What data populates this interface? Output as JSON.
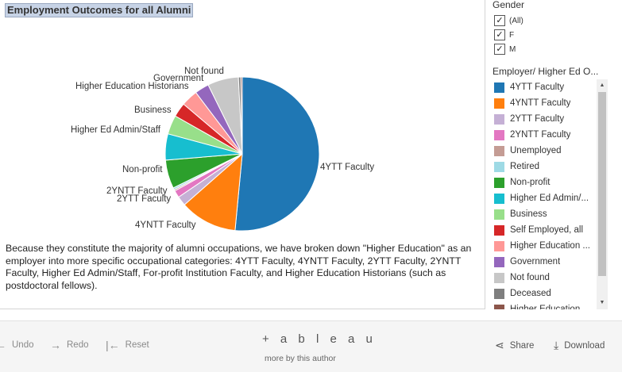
{
  "title": "Employment Outcomes for all Alumni",
  "chart_data": {
    "type": "pie",
    "slices": [
      {
        "label": "4YTT Faculty",
        "value": 51.5,
        "color": "#1f77b4"
      },
      {
        "label": "4YNTT Faculty",
        "value": 12.0,
        "color": "#ff7f0e"
      },
      {
        "label": "2YTT Faculty",
        "value": 2.0,
        "color": "#c5b0d5"
      },
      {
        "label": "2YNTT Faculty",
        "value": 1.5,
        "color": "#e377c2"
      },
      {
        "label": "Unemployed",
        "value": 0.3,
        "color": "#c49c94"
      },
      {
        "label": "Retired",
        "value": 0.4,
        "color": "#9edae5"
      },
      {
        "label": "Non-profit",
        "value": 6.0,
        "color": "#2ca02c"
      },
      {
        "label": "Higher Ed Admin/Staff",
        "value": 5.5,
        "color": "#17becf"
      },
      {
        "label": "Business",
        "value": 4.0,
        "color": "#98df8a"
      },
      {
        "label": "Self Employed, all",
        "value": 3.0,
        "color": "#d62728"
      },
      {
        "label": "Higher Education Historians",
        "value": 3.5,
        "color": "#ff9896"
      },
      {
        "label": "Government",
        "value": 3.0,
        "color": "#9467bd"
      },
      {
        "label": "Not found",
        "value": 6.5,
        "color": "#c7c7c7"
      },
      {
        "label": "Deceased",
        "value": 0.5,
        "color": "#7f7f7f"
      },
      {
        "label": "Higher Education",
        "value": 0.3,
        "color": "#8c564b"
      }
    ]
  },
  "note": "Because they constitute the majority of alumni occupations,  we have broken down \"Higher Education\" as an employer into more specific occupational categories: 4YTT Faculty, 4YNTT Faculty, 2YTT Faculty, 2YNTT Faculty, Higher Ed Admin/Staff,  For-profit Institution Faculty, and Higher Education Historians (such as postdoctoral fellows).",
  "filters": {
    "gender_heading": "Gender",
    "gender_options": [
      {
        "label": "(All)",
        "checked": true
      },
      {
        "label": "F",
        "checked": true
      },
      {
        "label": "M",
        "checked": true
      }
    ],
    "legend_heading": "Employer/ Higher Ed O...",
    "legend_items": [
      {
        "label": "4YTT Faculty",
        "color": "#1f77b4"
      },
      {
        "label": "4YNTT Faculty",
        "color": "#ff7f0e"
      },
      {
        "label": "2YTT Faculty",
        "color": "#c5b0d5"
      },
      {
        "label": "2YNTT Faculty",
        "color": "#e377c2"
      },
      {
        "label": "Unemployed",
        "color": "#c49c94"
      },
      {
        "label": "Retired",
        "color": "#9edae5"
      },
      {
        "label": "Non-profit",
        "color": "#2ca02c"
      },
      {
        "label": "Higher Ed Admin/...",
        "color": "#17becf"
      },
      {
        "label": "Business",
        "color": "#98df8a"
      },
      {
        "label": "Self Employed, all",
        "color": "#d62728"
      },
      {
        "label": "Higher Education ...",
        "color": "#ff9896"
      },
      {
        "label": "Government",
        "color": "#9467bd"
      },
      {
        "label": "Not found",
        "color": "#c7c7c7"
      },
      {
        "label": "Deceased",
        "color": "#7f7f7f"
      },
      {
        "label": "Higher Education ...",
        "color": "#8c564b"
      }
    ]
  },
  "toolbar": {
    "undo_label": "Undo",
    "redo_label": "Redo",
    "reset_label": "Reset",
    "logo_text": "+ a b l e a u",
    "byline": "more by this author",
    "share_label": "Share",
    "download_label": "Download"
  }
}
